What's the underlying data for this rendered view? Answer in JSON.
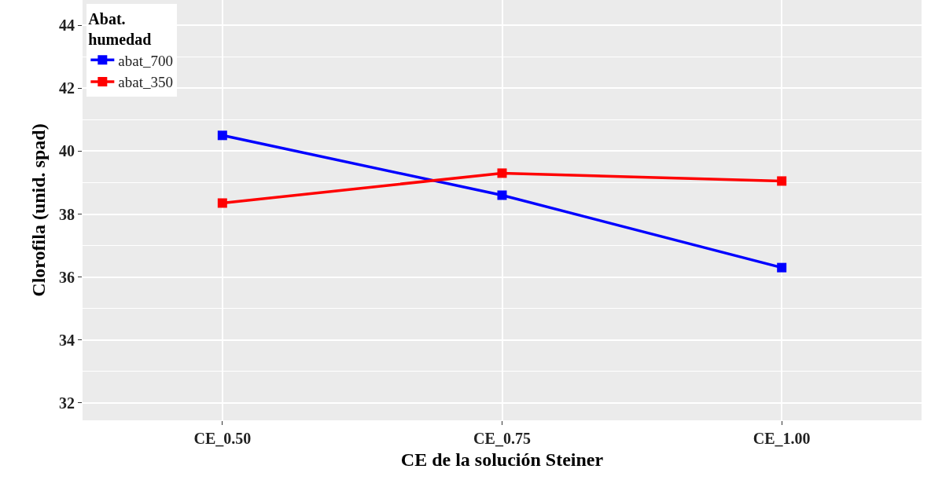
{
  "chart_data": {
    "type": "line",
    "xlabel": "CE de la solución Steiner",
    "ylabel": "Clorofila (unid. spad)",
    "legend_title": "Abat.\nhumedad",
    "categories": [
      "CE_0.50",
      "CE_0.75",
      "CE_1.00"
    ],
    "series": [
      {
        "name": "abat_700",
        "color": "#0000ff",
        "values": [
          40.5,
          38.6,
          36.3
        ]
      },
      {
        "name": "abat_350",
        "color": "#ff0000",
        "values": [
          38.35,
          39.3,
          39.05
        ]
      }
    ],
    "ylim": [
      31.45,
      44.8
    ],
    "yticks": [
      32,
      34,
      36,
      38,
      40,
      42,
      44
    ],
    "grid": true,
    "legend": "top left",
    "marker": "square",
    "line_style": "solid"
  }
}
